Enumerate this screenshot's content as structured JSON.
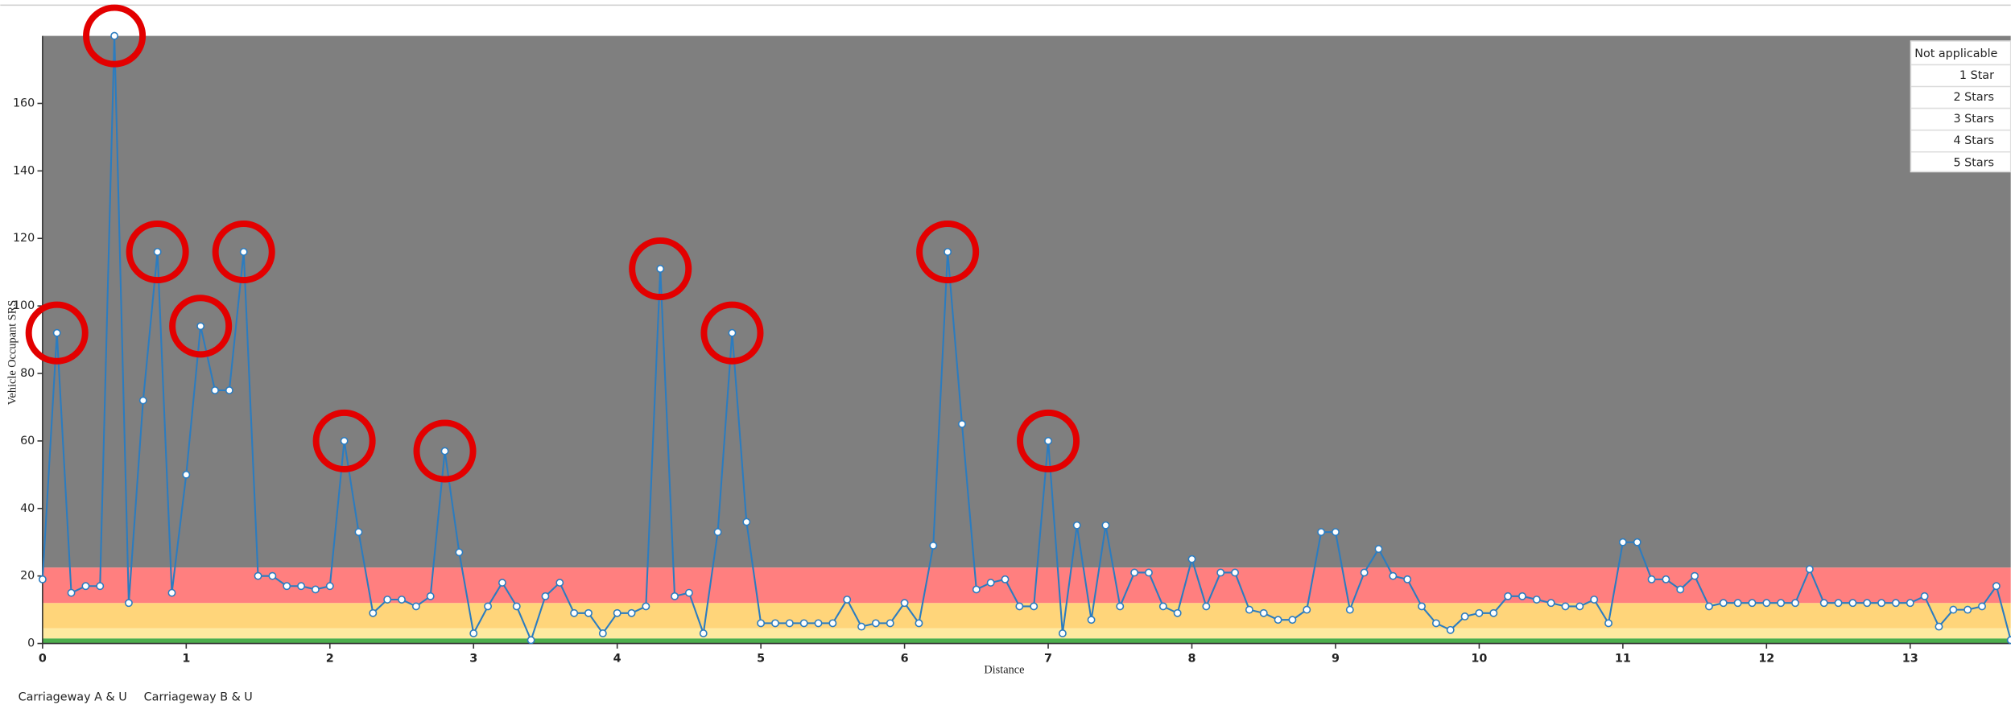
{
  "chart_data": {
    "type": "line",
    "x_label": "Distance",
    "y_label": "Vehicle Occupant SRS",
    "x": [
      0,
      0.1,
      0.2,
      0.3,
      0.4,
      0.5,
      0.6,
      0.7,
      0.8,
      0.9,
      1,
      1.1,
      1.2,
      1.3,
      1.4,
      1.5,
      1.6,
      1.7,
      1.8,
      1.9,
      2,
      2.1,
      2.2,
      2.3,
      2.4,
      2.5,
      2.6,
      2.7,
      2.8,
      2.9,
      3,
      3.1,
      3.2,
      3.3,
      3.4,
      3.5,
      3.6,
      3.7,
      3.8,
      3.9,
      4,
      4.1,
      4.2,
      4.3,
      4.4,
      4.5,
      4.6,
      4.7,
      4.8,
      4.9,
      5,
      5.1,
      5.2,
      5.3,
      5.4,
      5.5,
      5.6,
      5.7,
      5.8,
      5.9,
      6,
      6.1,
      6.2,
      6.3,
      6.4,
      6.5,
      6.6,
      6.7,
      6.8,
      6.9,
      7,
      7.1,
      7.2,
      7.3,
      7.4,
      7.5,
      7.6,
      7.7,
      7.8,
      7.9,
      8,
      8.1,
      8.2,
      8.3,
      8.4,
      8.5,
      8.6,
      8.7,
      8.8,
      8.9,
      9,
      9.1,
      9.2,
      9.3,
      9.4,
      9.5,
      9.6,
      9.7,
      9.8,
      9.9,
      10,
      10.1,
      10.2,
      10.3,
      10.4,
      10.5,
      10.6,
      10.7,
      10.8,
      10.9,
      11,
      11.1,
      11.2,
      11.3,
      11.4,
      11.5,
      11.6,
      11.7,
      11.8,
      11.9,
      12,
      12.1,
      12.2,
      12.3,
      12.4,
      12.5,
      12.6,
      12.7,
      12.8,
      12.9,
      13,
      13.1,
      13.2,
      13.3,
      13.4,
      13.5,
      13.6,
      13.7
    ],
    "series": [
      {
        "color": "#2b7cc0",
        "values": [
          19,
          92,
          15,
          17,
          17,
          180,
          12,
          72,
          116,
          15,
          50,
          94,
          75,
          75,
          116,
          20,
          20,
          17,
          17,
          16,
          17,
          60,
          33,
          9,
          13,
          13,
          11,
          14,
          57,
          27,
          3,
          11,
          18,
          11,
          1,
          14,
          18,
          9,
          9,
          3,
          9,
          9,
          11,
          111,
          14,
          15,
          3,
          33,
          92,
          36,
          6,
          6,
          6,
          6,
          6,
          6,
          13,
          5,
          6,
          6,
          12,
          6,
          29,
          116,
          65,
          16,
          18,
          19,
          11,
          11,
          60,
          3,
          35,
          7,
          35,
          11,
          21,
          21,
          11,
          9,
          25,
          11,
          21,
          21,
          10,
          9,
          7,
          7,
          10,
          33,
          33,
          10,
          21,
          28,
          20,
          19,
          11,
          6,
          4,
          8,
          9,
          9,
          14,
          14,
          13,
          12,
          11,
          11,
          13,
          6,
          30,
          30,
          19,
          19,
          16,
          20,
          11,
          12,
          12,
          12,
          12,
          12,
          12,
          22,
          12,
          12,
          12,
          12,
          12,
          12,
          12,
          14,
          5,
          10,
          10,
          11,
          17,
          1
        ]
      }
    ],
    "highlighted_points": [
      1,
      5,
      8,
      11,
      14,
      21,
      28,
      43,
      48,
      63,
      70
    ],
    "highlight_color": "#e30000",
    "bands": [
      {
        "from": 0,
        "to": 1.5,
        "color": "#4cae4c"
      },
      {
        "from": 1.5,
        "to": 4.5,
        "color": "#ffeaa0"
      },
      {
        "from": 4.5,
        "to": 12,
        "color": "#ffd57a"
      },
      {
        "from": 12,
        "to": 22.5,
        "color": "#ff7f7f"
      },
      {
        "from": 22.5,
        "to": 180,
        "color": "#7f7f7f"
      }
    ],
    "xlim": [
      0,
      13.7
    ],
    "xticks": [
      0,
      1,
      2,
      3,
      4,
      5,
      6,
      7,
      8,
      9,
      10,
      11,
      12,
      13
    ],
    "ylim": [
      0,
      180
    ],
    "yticks": [
      0,
      20,
      40,
      60,
      80,
      100,
      120,
      140,
      160
    ],
    "legend_items": [
      "Not applicable",
      "1 Star",
      "2 Stars",
      "3 Stars",
      "4 Stars",
      "5 Stars"
    ],
    "footer_items": [
      "Carriageway A & U",
      "Carriageway B & U"
    ]
  }
}
